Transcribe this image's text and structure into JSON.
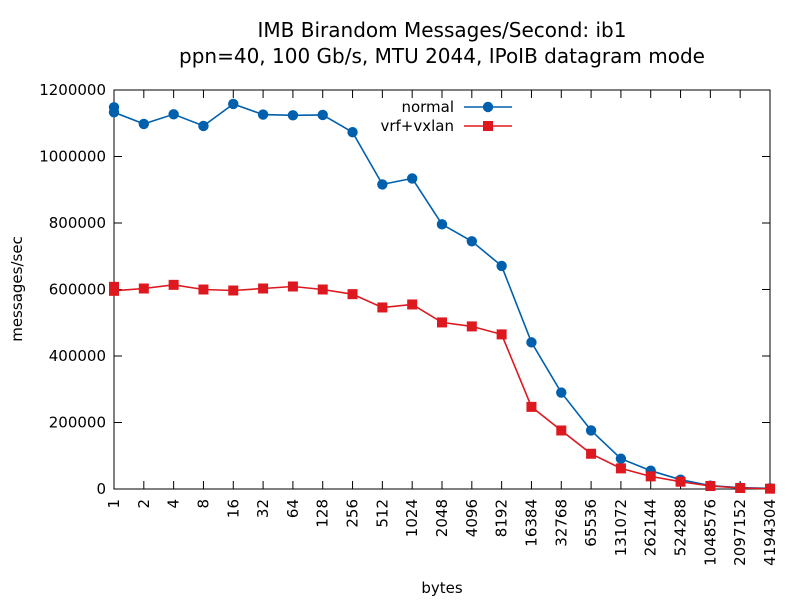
{
  "chart_data": {
    "type": "line",
    "title": "IMB Birandom Messages/Second: ib1",
    "subtitle": "ppn=40, 100 Gb/s, MTU 2044, IPoIB datagram mode",
    "xlabel": "bytes",
    "ylabel": "messages/sec",
    "ylim": [
      0,
      1200000
    ],
    "yticks": [
      "0",
      "200000",
      "400000",
      "600000",
      "800000",
      "1000000",
      "1200000"
    ],
    "categories": [
      "1",
      "2",
      "4",
      "8",
      "16",
      "32",
      "64",
      "128",
      "256",
      "512",
      "1024",
      "2048",
      "4096",
      "8192",
      "16384",
      "32768",
      "65536",
      "131072",
      "262144",
      "524288",
      "1048576",
      "2097152",
      "4194304"
    ],
    "legend_position": "top-center",
    "series": [
      {
        "name": "normal",
        "color": "#0060ad",
        "marker": "circle",
        "points": [
          [
            0,
            1148000
          ],
          [
            0,
            1133000
          ],
          [
            1,
            1098000
          ],
          [
            2,
            1127000
          ],
          [
            3,
            1092000
          ],
          [
            4,
            1158000
          ],
          [
            5,
            1126000
          ],
          [
            6,
            1124000
          ],
          [
            7,
            1125000
          ],
          [
            8,
            1073000
          ],
          [
            9,
            916000
          ],
          [
            10,
            934000
          ],
          [
            11,
            796000
          ],
          [
            12,
            745000
          ],
          [
            13,
            671000
          ],
          [
            14,
            441000
          ],
          [
            15,
            290000
          ],
          [
            16,
            176000
          ],
          [
            17,
            91000
          ],
          [
            18,
            55000
          ],
          [
            19,
            28000
          ],
          [
            20,
            10000
          ],
          [
            21,
            4000
          ],
          [
            22,
            2000
          ]
        ]
      },
      {
        "name": "vrf+vxlan",
        "color": "#dd181f",
        "marker": "square",
        "points": [
          [
            0,
            608000
          ],
          [
            0,
            596000
          ],
          [
            1,
            603000
          ],
          [
            2,
            614000
          ],
          [
            3,
            600000
          ],
          [
            4,
            597000
          ],
          [
            5,
            603000
          ],
          [
            6,
            609000
          ],
          [
            7,
            600000
          ],
          [
            8,
            586000
          ],
          [
            9,
            546000
          ],
          [
            10,
            555000
          ],
          [
            11,
            501000
          ],
          [
            12,
            489000
          ],
          [
            13,
            465000
          ],
          [
            14,
            247000
          ],
          [
            15,
            176000
          ],
          [
            16,
            106000
          ],
          [
            17,
            62000
          ],
          [
            18,
            38000
          ],
          [
            19,
            22000
          ],
          [
            20,
            9000
          ],
          [
            21,
            3000
          ],
          [
            22,
            1000
          ]
        ]
      }
    ]
  }
}
